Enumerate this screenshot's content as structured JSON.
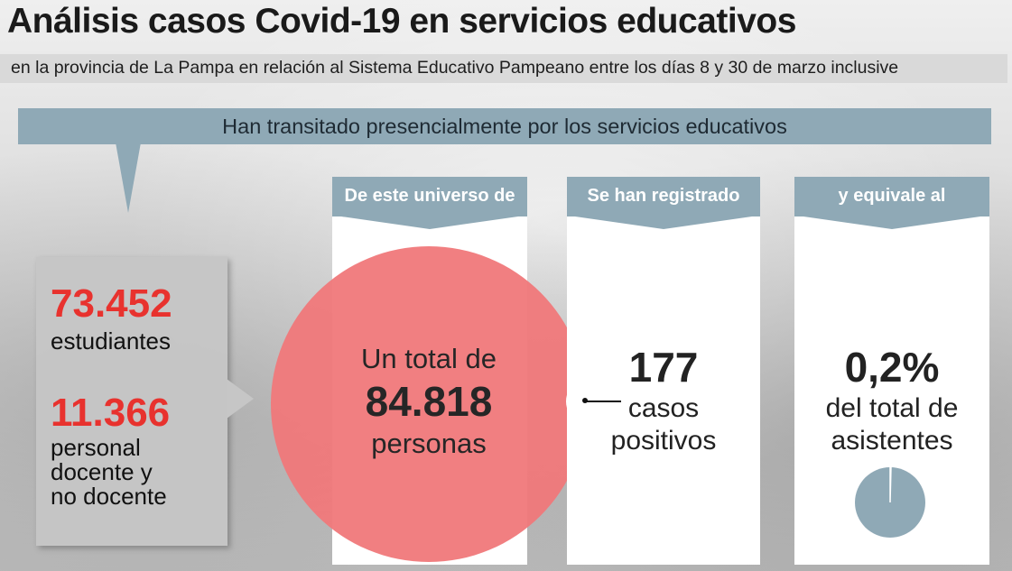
{
  "header": {
    "title": "Análisis casos Covid-19 en servicios educativos",
    "subtitle": "en la provincia de La Pampa en relación al Sistema Educativo Pampeano entre los días 8 y 30 de marzo inclusive"
  },
  "banner": {
    "text": "Han transitado presencialmente por los servicios educativos"
  },
  "left_panel": {
    "students_number": "73.452",
    "students_label": "estudiantes",
    "staff_number": "11.366",
    "staff_label_line1": "personal",
    "staff_label_line2": "docente y",
    "staff_label_line3": "no docente"
  },
  "columns": [
    {
      "header": "De este universo de",
      "line1": "Un total de",
      "number": "84.818",
      "line2": "personas"
    },
    {
      "header": "Se han registrado",
      "number": "177",
      "line1": "casos",
      "line2": "positivos"
    },
    {
      "header": "y equivale al",
      "number": "0,2%",
      "line1": "del total de",
      "line2": "asistentes"
    }
  ],
  "pie": {
    "percent": 0.2,
    "color": "#8fa9b6",
    "slice_color": "#ffffff"
  },
  "colors": {
    "accent_blue": "#8fa9b6",
    "accent_red": "#e8322e",
    "circle_red": "#f0787a"
  }
}
